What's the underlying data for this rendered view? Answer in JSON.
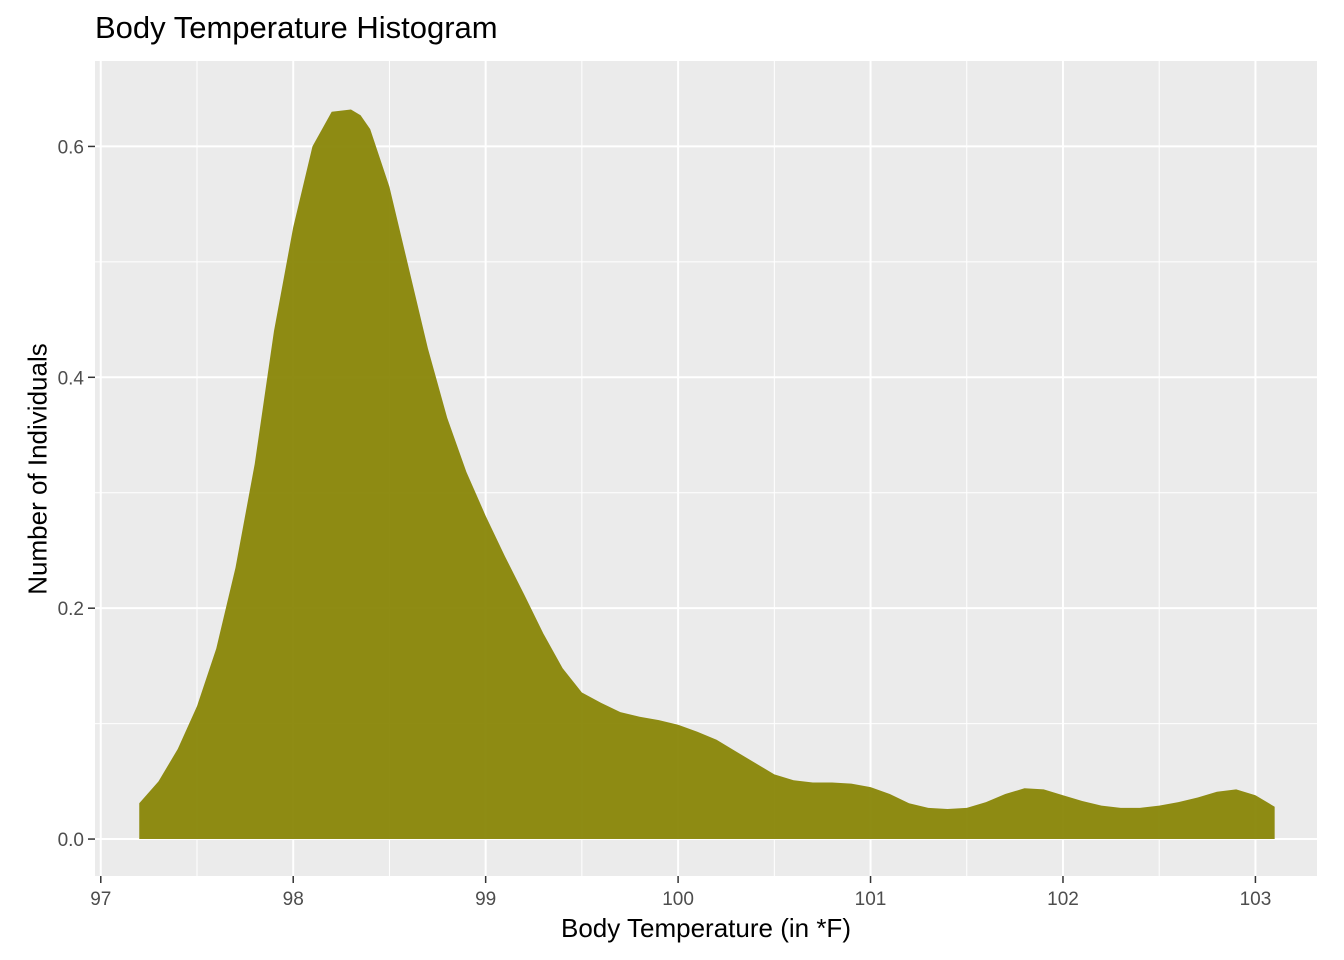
{
  "chart_data": {
    "type": "area",
    "title": "Body Temperature Histogram",
    "xlabel": "Body Temperature (in *F)",
    "ylabel": "Number of Individuals",
    "xlim": [
      96.97,
      103.32
    ],
    "ylim": [
      -0.032,
      0.674
    ],
    "x_ticks": [
      97,
      98,
      99,
      100,
      101,
      102,
      103
    ],
    "y_ticks": [
      0.0,
      0.2,
      0.4,
      0.6
    ],
    "y_tick_labels": [
      "0.0",
      "0.2",
      "0.4",
      "0.6"
    ],
    "grid": true,
    "fill_color": "#858200",
    "panel_color": "#ebebeb",
    "x": [
      97.2,
      97.3,
      97.4,
      97.5,
      97.6,
      97.7,
      97.8,
      97.9,
      98.0,
      98.1,
      98.2,
      98.3,
      98.35,
      98.4,
      98.5,
      98.6,
      98.7,
      98.8,
      98.9,
      99.0,
      99.1,
      99.2,
      99.3,
      99.4,
      99.5,
      99.6,
      99.7,
      99.8,
      99.9,
      100.0,
      100.1,
      100.2,
      100.3,
      100.4,
      100.5,
      100.6,
      100.7,
      100.8,
      100.9,
      101.0,
      101.1,
      101.2,
      101.3,
      101.4,
      101.5,
      101.6,
      101.7,
      101.8,
      101.9,
      102.0,
      102.1,
      102.2,
      102.3,
      102.4,
      102.5,
      102.6,
      102.7,
      102.8,
      102.9,
      103.0,
      103.1
    ],
    "y": [
      0.031,
      0.05,
      0.078,
      0.115,
      0.165,
      0.235,
      0.325,
      0.44,
      0.53,
      0.6,
      0.63,
      0.632,
      0.627,
      0.615,
      0.565,
      0.495,
      0.425,
      0.365,
      0.318,
      0.28,
      0.245,
      0.212,
      0.178,
      0.148,
      0.127,
      0.118,
      0.11,
      0.106,
      0.103,
      0.099,
      0.093,
      0.086,
      0.076,
      0.066,
      0.056,
      0.051,
      0.049,
      0.049,
      0.048,
      0.045,
      0.039,
      0.031,
      0.027,
      0.026,
      0.027,
      0.032,
      0.039,
      0.044,
      0.043,
      0.038,
      0.033,
      0.029,
      0.027,
      0.027,
      0.029,
      0.032,
      0.036,
      0.041,
      0.043,
      0.038,
      0.028
    ]
  }
}
